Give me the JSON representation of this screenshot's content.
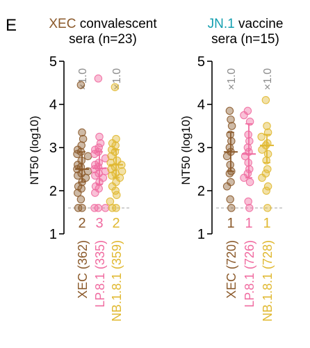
{
  "panel_letter": "E",
  "colors": {
    "xec": "#8B5A2B",
    "lp81": "#F06BA0",
    "nb181": "#E0B830",
    "jn1": "#139FB0",
    "axis": "#000000",
    "fold_gray": "#8C8C8C",
    "lod": "#BDBDBD"
  },
  "chart_data": [
    {
      "type": "scatter",
      "title_prefix": "XEC",
      "title_line1": " convalescent",
      "title_line2": "sera (n=23)",
      "ylabel": "NT50 (log10)",
      "ylim": [
        1,
        5
      ],
      "yticks": [
        "1",
        "2",
        "3",
        "4",
        "5"
      ],
      "limit_of_detection": 1.6,
      "grid": false,
      "categories": [
        "XEC (362)",
        "LP.8.1 (335)",
        "NB.1.8.1 (359)"
      ],
      "fold_labels": [
        "×1.0",
        "",
        "×1.0"
      ],
      "below_lod_counts": [
        "2",
        "3",
        "2"
      ],
      "series": [
        {
          "name": "XEC (362)",
          "color_key": "xec",
          "values": [
            4.45,
            3.35,
            3.2,
            3.05,
            2.95,
            2.9,
            2.85,
            2.8,
            2.7,
            2.6,
            2.55,
            2.5,
            2.45,
            2.4,
            2.35,
            2.3,
            2.2,
            2.1,
            2.05,
            1.95,
            1.8,
            1.6,
            1.6
          ],
          "center": 2.5,
          "error": [
            2.2,
            2.9
          ]
        },
        {
          "name": "LP.8.1 (335)",
          "color_key": "lp81",
          "values": [
            4.6,
            3.25,
            3.1,
            3.0,
            2.95,
            2.9,
            2.85,
            2.75,
            2.65,
            2.6,
            2.55,
            2.5,
            2.45,
            2.4,
            2.35,
            2.3,
            2.2,
            2.1,
            2.05,
            1.95,
            1.6,
            1.6,
            1.6
          ],
          "center": 2.52,
          "error": [
            2.15,
            2.9
          ]
        },
        {
          "name": "NB.1.8.1 (359)",
          "color_key": "nb181",
          "values": [
            4.4,
            3.2,
            3.1,
            3.05,
            2.95,
            2.9,
            2.8,
            2.7,
            2.65,
            2.6,
            2.55,
            2.5,
            2.45,
            2.4,
            2.35,
            2.3,
            2.2,
            2.1,
            2.0,
            1.9,
            1.75,
            1.6,
            1.6
          ],
          "center": 2.6,
          "error": [
            2.3,
            2.95
          ]
        }
      ]
    },
    {
      "type": "scatter",
      "title_prefix": "JN.1",
      "title_line1": " vaccine",
      "title_line2": "sera (n=15)",
      "ylabel": "NT50 (log10)",
      "ylim": [
        1,
        5
      ],
      "yticks": [
        "1",
        "2",
        "3",
        "4",
        "5"
      ],
      "limit_of_detection": 1.6,
      "grid": false,
      "categories": [
        "XEC (720)",
        "LP.8.1 (726)",
        "NB.1.8.1 (728)"
      ],
      "fold_labels": [
        "×1.0",
        "",
        "×1.0"
      ],
      "below_lod_counts": [
        "1",
        "1",
        "1"
      ],
      "series": [
        {
          "name": "XEC (720)",
          "color_key": "xec",
          "values": [
            3.85,
            3.65,
            3.5,
            3.3,
            3.15,
            3.0,
            2.9,
            2.8,
            2.6,
            2.45,
            2.4,
            2.2,
            2.1,
            1.8,
            1.6
          ],
          "center": 2.9,
          "error": [
            2.45,
            3.35
          ]
        },
        {
          "name": "LP.8.1 (726)",
          "color_key": "lp81",
          "values": [
            3.85,
            3.75,
            3.6,
            3.3,
            3.15,
            3.0,
            2.9,
            2.8,
            2.65,
            2.5,
            2.4,
            2.3,
            2.2,
            1.75,
            1.6
          ],
          "center": 2.85,
          "error": [
            2.3,
            3.55
          ]
        },
        {
          "name": "NB.1.8.1 (728)",
          "color_key": "nb181",
          "values": [
            4.1,
            3.5,
            3.35,
            3.25,
            3.1,
            3.05,
            2.95,
            2.85,
            2.7,
            2.5,
            2.4,
            2.3,
            2.1,
            2.0,
            1.6
          ],
          "center": 3.05,
          "error": [
            2.65,
            3.3
          ]
        }
      ]
    }
  ]
}
